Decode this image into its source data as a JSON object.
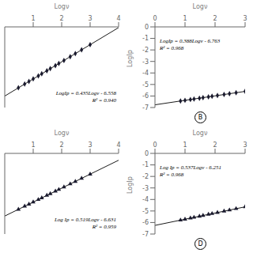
{
  "chart_data": [
    {
      "type": "scatter",
      "x_label": "Logν",
      "xlim": [
        0,
        4
      ],
      "xticks": [
        1,
        2,
        3,
        4
      ],
      "ylim": [
        -6.85,
        -4.8
      ],
      "yticks": [],
      "tick_labels": "x",
      "grid": false,
      "annotations": [
        "LogIp = 0.435Logν - 6.558",
        "R² = 0.940"
      ],
      "series": [
        {
          "type": "scatter",
          "marker": "diamond",
          "color": "#1a1a2e",
          "x": [
            0.48,
            0.7,
            0.85,
            1.0,
            1.18,
            1.3,
            1.48,
            1.6,
            1.78,
            1.9,
            2.08,
            2.3,
            2.48,
            2.7,
            3.0
          ],
          "values": [
            -6.3492,
            -6.2535,
            -6.18825,
            -6.123,
            -6.0447,
            -5.9925,
            -5.9142,
            -5.862,
            -5.7837,
            -5.7315,
            -5.6532,
            -5.5575,
            -5.4792,
            -5.3835,
            -5.253
          ]
        },
        {
          "type": "line",
          "color": "#1a1a1a",
          "x": [
            0,
            4
          ],
          "values": [
            -6.558,
            -4.818
          ]
        }
      ]
    },
    {
      "type": "scatter",
      "title": "B",
      "x_label": "Logν",
      "y_label": "LogIp",
      "xlim": [
        0,
        3
      ],
      "xticks": [
        0,
        1,
        2,
        3
      ],
      "ylim": [
        -7,
        0
      ],
      "yticks": [
        0,
        -1,
        -2,
        -3,
        -4,
        -5,
        -6,
        -7
      ],
      "grid": false,
      "annotations": [
        "LogIp = 0.388Logν - 6.763",
        "R² = 0.968"
      ],
      "series": [
        {
          "type": "scatter",
          "marker": "diamond",
          "color": "#1a1a2e",
          "x": [
            0.85,
            1.0,
            1.18,
            1.3,
            1.48,
            1.6,
            1.78,
            1.9,
            2.08,
            2.3,
            2.48,
            2.7,
            3.0
          ],
          "values": [
            -6.4332,
            -6.375,
            -6.30516,
            -6.2586,
            -6.18876,
            -6.1422,
            -6.07236,
            -6.0258,
            -5.95596,
            -5.8706,
            -5.80076,
            -5.7154,
            -5.599
          ]
        },
        {
          "type": "line",
          "color": "#1a1a1a",
          "x": [
            0,
            3
          ],
          "values": [
            -6.763,
            -5.599
          ]
        }
      ]
    },
    {
      "type": "scatter",
      "x_label": "Logν",
      "xlim": [
        0,
        4
      ],
      "xticks": [
        1,
        2,
        3,
        4
      ],
      "ylim": [
        -7.3,
        -4.3
      ],
      "yticks": [],
      "tick_labels": "x",
      "grid": false,
      "annotations": [
        "Log Ip = 0.519Logν - 6.631",
        "R² = 0.959"
      ],
      "series": [
        {
          "type": "scatter",
          "marker": "triangle",
          "color": "#1a1a2e",
          "x": [
            0.48,
            0.7,
            0.85,
            1.0,
            1.18,
            1.3,
            1.48,
            1.6,
            1.78,
            1.9,
            2.08,
            2.3,
            2.48,
            2.7,
            3.0
          ],
          "values": [
            -6.38188,
            -6.2677,
            -6.18985,
            -6.112,
            -6.01858,
            -5.9563,
            -5.86288,
            -5.8006,
            -5.70718,
            -5.6449,
            -5.55148,
            -5.4373,
            -5.34388,
            -5.2297,
            -5.074
          ]
        },
        {
          "type": "line",
          "color": "#1a1a1a",
          "x": [
            0,
            4
          ],
          "values": [
            -6.631,
            -4.555
          ]
        }
      ]
    },
    {
      "type": "scatter",
      "title": "D",
      "x_label": "Logν",
      "y_label": "LogIp",
      "xlim": [
        0,
        3
      ],
      "xticks": [
        0,
        1,
        2,
        3
      ],
      "ylim": [
        -7,
        0
      ],
      "yticks": [
        0,
        -1,
        -2,
        -3,
        -4,
        -5,
        -6,
        -7
      ],
      "grid": false,
      "annotations": [
        "Log Ip = 0.537Logν - 6.251",
        "R² = 0.968"
      ],
      "series": [
        {
          "type": "scatter",
          "marker": "triangle",
          "color": "#1a1a2e",
          "x": [
            0.85,
            1.0,
            1.18,
            1.3,
            1.48,
            1.6,
            1.78,
            1.9,
            2.08,
            2.3,
            2.48,
            2.7,
            3.0
          ],
          "values": [
            -5.79455,
            -5.714,
            -5.61734,
            -5.5529,
            -5.45624,
            -5.3918,
            -5.29514,
            -5.2307,
            -5.13404,
            -5.0159,
            -4.91924,
            -4.8011,
            -4.64
          ]
        },
        {
          "type": "line",
          "color": "#1a1a1a",
          "x": [
            0,
            3
          ],
          "values": [
            -6.251,
            -4.64
          ]
        }
      ]
    }
  ]
}
